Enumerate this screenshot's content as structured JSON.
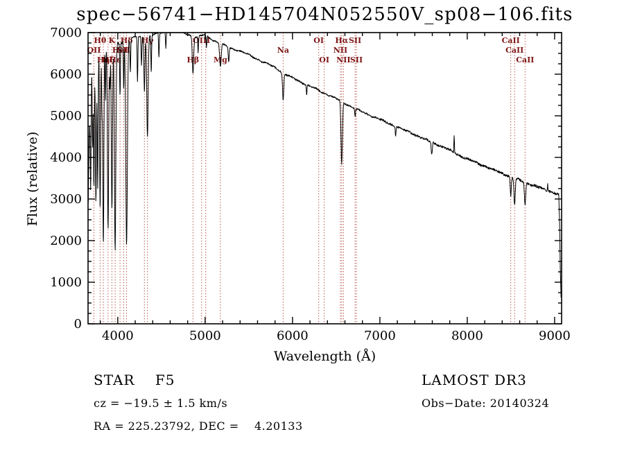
{
  "title": "spec−56741−HD145704N052550V_sp08−106.fits",
  "footer": {
    "class_label": "STAR    F5",
    "cz": "cz = −19.5 ± 1.5 km/s",
    "radec": "RA = 225.23792, DEC =    4.20133",
    "survey": "LAMOST DR3",
    "obs_date": "Obs−Date: 20140324"
  },
  "chart_data": {
    "type": "line",
    "title": "spec−56741−HD145704N052550V_sp08−106.fits",
    "xlabel": "Wavelength (Å)",
    "ylabel": "Flux (relative)",
    "xlim": [
      3660,
      9080
    ],
    "ylim": [
      0,
      7000
    ],
    "xticks": [
      4000,
      5000,
      6000,
      7000,
      8000,
      9000
    ],
    "yticks": [
      0,
      1000,
      2000,
      3000,
      4000,
      5000,
      6000,
      7000
    ],
    "xtick_minor_step": 200,
    "ytick_minor_step": 250,
    "grid": false,
    "legend": "none",
    "line_color": "#000000",
    "marker_line_color": "#b04a3c",
    "marker_label_color": "#7d1515",
    "continuum": [
      [
        3660,
        2600
      ],
      [
        3672,
        4300
      ],
      [
        3685,
        5600
      ],
      [
        3700,
        6200
      ],
      [
        3725,
        6450
      ],
      [
        3760,
        6600
      ],
      [
        3800,
        6650
      ],
      [
        3850,
        6700
      ],
      [
        3900,
        6750
      ],
      [
        4000,
        6750
      ],
      [
        4100,
        6800
      ],
      [
        4200,
        6900
      ],
      [
        4300,
        6900
      ],
      [
        4400,
        6950
      ],
      [
        4500,
        7000
      ],
      [
        4600,
        7040
      ],
      [
        4700,
        7040
      ],
      [
        4800,
        6960
      ],
      [
        4900,
        6890
      ],
      [
        5000,
        6950
      ],
      [
        5100,
        6810
      ],
      [
        5200,
        6710
      ],
      [
        5300,
        6620
      ],
      [
        5400,
        6560
      ],
      [
        5500,
        6460
      ],
      [
        5600,
        6360
      ],
      [
        5700,
        6260
      ],
      [
        5800,
        6160
      ],
      [
        5900,
        6020
      ],
      [
        6000,
        5910
      ],
      [
        6100,
        5810
      ],
      [
        6200,
        5710
      ],
      [
        6300,
        5610
      ],
      [
        6400,
        5510
      ],
      [
        6500,
        5410
      ],
      [
        6600,
        5300
      ],
      [
        6700,
        5190
      ],
      [
        6800,
        5090
      ],
      [
        6900,
        5000
      ],
      [
        7000,
        4910
      ],
      [
        7100,
        4820
      ],
      [
        7200,
        4730
      ],
      [
        7300,
        4640
      ],
      [
        7400,
        4550
      ],
      [
        7500,
        4450
      ],
      [
        7600,
        4360
      ],
      [
        7700,
        4270
      ],
      [
        7800,
        4170
      ],
      [
        7900,
        4060
      ],
      [
        8000,
        3960
      ],
      [
        8100,
        3880
      ],
      [
        8200,
        3790
      ],
      [
        8300,
        3700
      ],
      [
        8400,
        3620
      ],
      [
        8500,
        3530
      ],
      [
        8600,
        3450
      ],
      [
        8700,
        3370
      ],
      [
        8800,
        3290
      ],
      [
        8900,
        3220
      ],
      [
        9000,
        3150
      ],
      [
        9030,
        3120
      ],
      [
        9048,
        3100
      ],
      [
        9058,
        2300
      ],
      [
        9066,
        1150
      ],
      [
        9076,
        500
      ]
    ],
    "absorption_lines": [
      [
        3690,
        2600,
        5
      ],
      [
        3712,
        2100,
        4
      ],
      [
        3727,
        3200,
        5
      ],
      [
        3750,
        3600,
        6
      ],
      [
        3770,
        3300,
        5
      ],
      [
        3798,
        3900,
        6
      ],
      [
        3820,
        1500,
        4
      ],
      [
        3835,
        4800,
        6
      ],
      [
        3860,
        1300,
        4
      ],
      [
        3889,
        4500,
        7
      ],
      [
        3910,
        1100,
        4
      ],
      [
        3933,
        4000,
        7
      ],
      [
        3970,
        5000,
        8
      ],
      [
        4026,
        1300,
        4
      ],
      [
        4068,
        1100,
        4
      ],
      [
        4101,
        4900,
        9
      ],
      [
        4144,
        800,
        4
      ],
      [
        4226,
        1100,
        4
      ],
      [
        4271,
        700,
        4
      ],
      [
        4305,
        1300,
        6
      ],
      [
        4340,
        2400,
        8
      ],
      [
        4383,
        900,
        4
      ],
      [
        4471,
        600,
        4
      ],
      [
        4550,
        400,
        4
      ],
      [
        4861,
        900,
        8
      ],
      [
        4920,
        400,
        4
      ],
      [
        5015,
        300,
        4
      ],
      [
        5175,
        550,
        9
      ],
      [
        5270,
        350,
        5
      ],
      [
        5893,
        650,
        7
      ],
      [
        6162,
        250,
        4
      ],
      [
        6563,
        1500,
        8
      ],
      [
        6717,
        200,
        4
      ],
      [
        7180,
        200,
        4
      ],
      [
        7594,
        300,
        6
      ],
      [
        8498,
        450,
        6
      ],
      [
        8542,
        650,
        7
      ],
      [
        8662,
        550,
        7
      ]
    ],
    "emission_spikes": [
      [
        7850,
        430,
        3
      ],
      [
        8920,
        170,
        3
      ]
    ],
    "noise_segments": [
      [
        3660,
        4150,
        45
      ],
      [
        4150,
        5500,
        17
      ],
      [
        5500,
        7000,
        20
      ],
      [
        7000,
        8400,
        26
      ],
      [
        8400,
        9080,
        30
      ]
    ],
    "spectral_markers": [
      {
        "wavelength": 3727,
        "label": "OII",
        "row": 1
      },
      {
        "wavelength": 3798,
        "label": "Hθ",
        "row": 0
      },
      {
        "wavelength": 3835,
        "label": "Hη",
        "row": 2
      },
      {
        "wavelength": 3889,
        "label": "Hζ",
        "row": 2
      },
      {
        "wavelength": 3933,
        "label": "K",
        "row": 0
      },
      {
        "wavelength": 3970,
        "label": "Hε",
        "row": 2
      },
      {
        "wavelength": 4026,
        "label": "HeI",
        "row": 1
      },
      {
        "wavelength": 4068,
        "label": "SII",
        "row": 1
      },
      {
        "wavelength": 4101,
        "label": "Hδ",
        "row": 0
      },
      {
        "wavelength": 4305,
        "label": "",
        "row": 2
      },
      {
        "wavelength": 4340,
        "label": "Hγ",
        "row": 0
      },
      {
        "wavelength": 4861,
        "label": "Hβ",
        "row": 2
      },
      {
        "wavelength": 4959,
        "label": "OIII",
        "row": 0
      },
      {
        "wavelength": 5007,
        "label": "",
        "row": 0
      },
      {
        "wavelength": 5175,
        "label": "Mg",
        "row": 2
      },
      {
        "wavelength": 5893,
        "label": "Na",
        "row": 1
      },
      {
        "wavelength": 6300,
        "label": "OI",
        "row": 0
      },
      {
        "wavelength": 6363,
        "label": "OI",
        "row": 2
      },
      {
        "wavelength": 6548,
        "label": "NII",
        "row": 1
      },
      {
        "wavelength": 6563,
        "label": "Hα",
        "row": 0
      },
      {
        "wavelength": 6583,
        "label": "NII",
        "row": 2
      },
      {
        "wavelength": 6716,
        "label": "SII",
        "row": 0
      },
      {
        "wavelength": 6731,
        "label": "SII",
        "row": 2
      },
      {
        "wavelength": 8498,
        "label": "CaII",
        "row": 0
      },
      {
        "wavelength": 8542,
        "label": "CaII",
        "row": 1
      },
      {
        "wavelength": 8662,
        "label": "CaII",
        "row": 2
      }
    ]
  }
}
